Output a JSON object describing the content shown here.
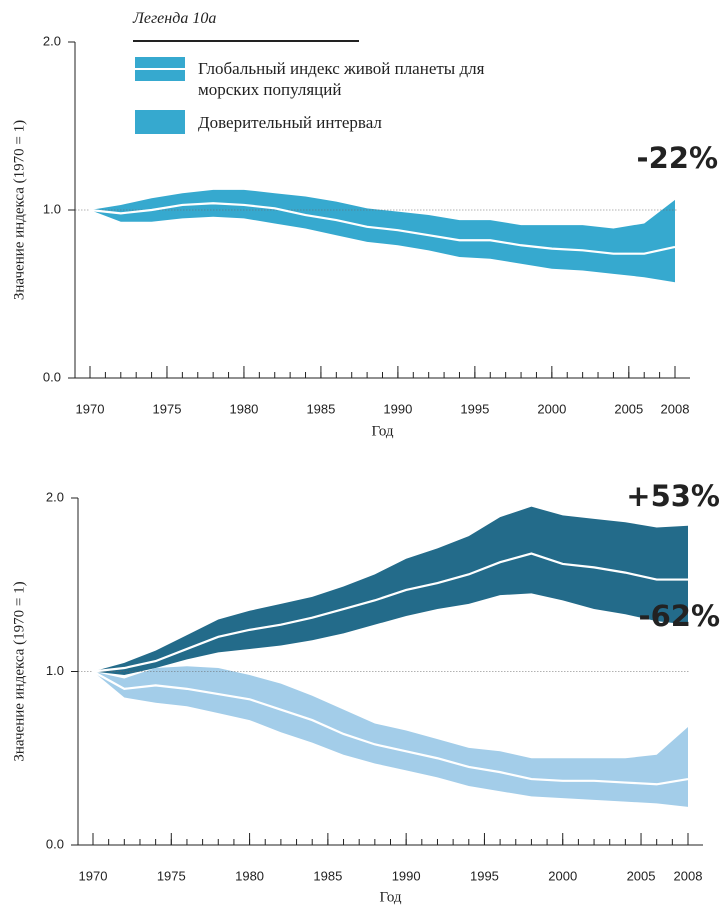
{
  "chart_data": [
    {
      "type": "band-line",
      "legend": {
        "title": "Легенда 10а"
      },
      "x": [
        1970,
        1972,
        1974,
        1976,
        1978,
        1980,
        1982,
        1984,
        1986,
        1988,
        1990,
        1992,
        1994,
        1996,
        1998,
        2000,
        2002,
        2004,
        2006,
        2008
      ],
      "xlim": [
        1970,
        2008
      ],
      "xticks": [
        1970,
        1975,
        1980,
        1985,
        1990,
        1995,
        2000,
        2005,
        2008
      ],
      "ylim": [
        0,
        2
      ],
      "yticks": [
        {
          "value": 0,
          "label": "0.0"
        },
        {
          "value": 1,
          "label": "1.0"
        },
        {
          "value": 2,
          "label": "2.0"
        }
      ],
      "reference_line": 1,
      "xlabel": "Год",
      "ylabel": "Значение индекса (1970 = 1)",
      "series": [
        {
          "name": "Глобальный индекс живой планеты для морских популяций",
          "band_name": "Доверительный интервал",
          "color": "#36a9cf",
          "line_color": "#ffffff",
          "label": "-22%",
          "values": [
            1.0,
            0.98,
            1.0,
            1.03,
            1.04,
            1.03,
            1.01,
            0.97,
            0.94,
            0.9,
            0.88,
            0.85,
            0.82,
            0.82,
            0.79,
            0.77,
            0.76,
            0.74,
            0.74,
            0.78
          ],
          "upper": [
            1.0,
            1.03,
            1.07,
            1.1,
            1.12,
            1.12,
            1.1,
            1.08,
            1.05,
            1.01,
            0.99,
            0.97,
            0.94,
            0.94,
            0.91,
            0.91,
            0.91,
            0.89,
            0.92,
            1.06
          ],
          "lower": [
            1.0,
            0.93,
            0.93,
            0.95,
            0.96,
            0.95,
            0.92,
            0.89,
            0.85,
            0.81,
            0.79,
            0.76,
            0.72,
            0.71,
            0.68,
            0.65,
            0.64,
            0.62,
            0.6,
            0.57
          ]
        }
      ]
    },
    {
      "type": "band-line",
      "x": [
        1970,
        1972,
        1974,
        1976,
        1978,
        1980,
        1982,
        1984,
        1986,
        1988,
        1990,
        1992,
        1994,
        1996,
        1998,
        2000,
        2002,
        2004,
        2006,
        2008
      ],
      "xlim": [
        1970,
        2008
      ],
      "xticks": [
        1970,
        1975,
        1980,
        1985,
        1990,
        1995,
        2000,
        2005,
        2008
      ],
      "ylim": [
        0,
        2
      ],
      "yticks": [
        {
          "value": 0,
          "label": "0.0"
        },
        {
          "value": 1,
          "label": "1.0"
        },
        {
          "value": 2,
          "label": "2.0"
        }
      ],
      "reference_line": 1,
      "xlabel": "Год",
      "ylabel": "Значение индекса (1970 = 1)",
      "series": [
        {
          "color": "#236b8a",
          "line_color": "#ffffff",
          "label": "+53%",
          "values": [
            1.0,
            1.02,
            1.06,
            1.13,
            1.2,
            1.24,
            1.27,
            1.31,
            1.36,
            1.41,
            1.47,
            1.51,
            1.56,
            1.63,
            1.68,
            1.62,
            1.6,
            1.57,
            1.53,
            1.53
          ],
          "upper": [
            1.0,
            1.05,
            1.12,
            1.21,
            1.3,
            1.35,
            1.39,
            1.43,
            1.49,
            1.56,
            1.65,
            1.71,
            1.78,
            1.89,
            1.95,
            1.9,
            1.88,
            1.86,
            1.83,
            1.84
          ],
          "lower": [
            1.0,
            0.98,
            1.02,
            1.07,
            1.11,
            1.13,
            1.15,
            1.18,
            1.22,
            1.27,
            1.32,
            1.36,
            1.39,
            1.44,
            1.45,
            1.41,
            1.36,
            1.33,
            1.29,
            1.27
          ]
        },
        {
          "color": "#a3cde9",
          "line_color": "#ffffff",
          "label": "-62%",
          "values": [
            1.0,
            0.9,
            0.92,
            0.9,
            0.87,
            0.84,
            0.78,
            0.72,
            0.64,
            0.58,
            0.54,
            0.5,
            0.45,
            0.42,
            0.38,
            0.37,
            0.37,
            0.36,
            0.35,
            0.38
          ],
          "upper": [
            1.0,
            0.96,
            1.02,
            1.03,
            1.02,
            0.98,
            0.93,
            0.86,
            0.78,
            0.7,
            0.66,
            0.61,
            0.56,
            0.54,
            0.5,
            0.5,
            0.5,
            0.5,
            0.52,
            0.68
          ],
          "lower": [
            1.0,
            0.85,
            0.82,
            0.8,
            0.76,
            0.72,
            0.65,
            0.59,
            0.52,
            0.47,
            0.43,
            0.39,
            0.34,
            0.31,
            0.28,
            0.27,
            0.26,
            0.25,
            0.24,
            0.22
          ]
        }
      ]
    }
  ]
}
